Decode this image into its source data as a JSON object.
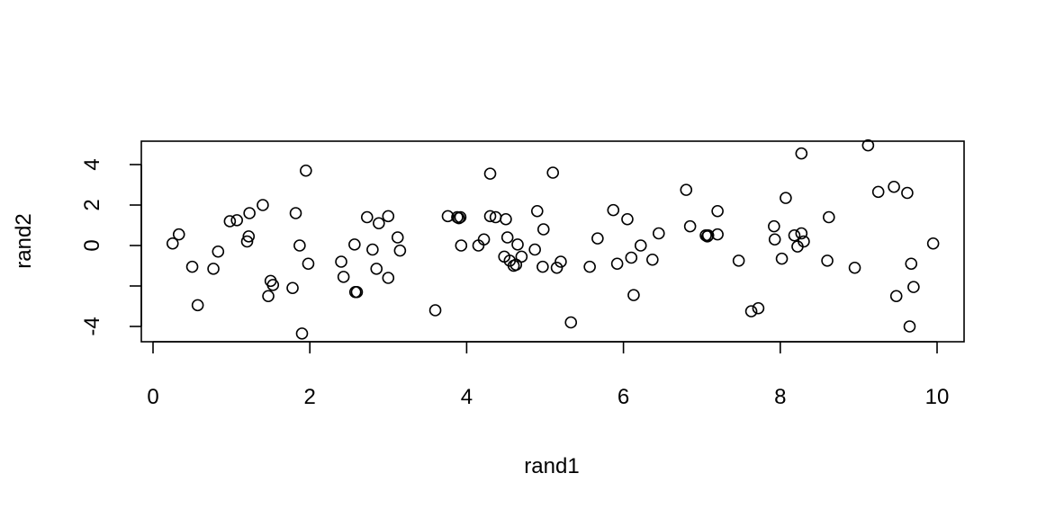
{
  "chart_data": {
    "type": "scatter",
    "title": "",
    "xlabel": "rand1",
    "ylabel": "rand2",
    "xlim": [
      0,
      10
    ],
    "ylim": [
      -4.6,
      5.2
    ],
    "x_ticks": [
      0,
      2,
      4,
      6,
      8,
      10
    ],
    "y_ticks": [
      -4,
      -2,
      0,
      2,
      4
    ],
    "x_tick_labels": [
      "0",
      "2",
      "4",
      "6",
      "8",
      "10"
    ],
    "y_tick_labels": [
      "-4",
      "",
      "0",
      "2",
      "4"
    ],
    "grid": false,
    "marker": "open-circle",
    "points": [
      [
        0.25,
        0.1
      ],
      [
        0.33,
        0.55
      ],
      [
        0.5,
        -1.05
      ],
      [
        0.57,
        -2.95
      ],
      [
        0.77,
        -1.15
      ],
      [
        0.83,
        -0.3
      ],
      [
        0.98,
        1.2
      ],
      [
        1.07,
        1.25
      ],
      [
        1.2,
        0.2
      ],
      [
        1.22,
        0.45
      ],
      [
        1.23,
        1.6
      ],
      [
        1.4,
        2.0
      ],
      [
        1.47,
        -2.5
      ],
      [
        1.5,
        -1.75
      ],
      [
        1.53,
        -1.95
      ],
      [
        1.78,
        -2.1
      ],
      [
        1.82,
        1.6
      ],
      [
        1.87,
        0.0
      ],
      [
        1.9,
        -4.35
      ],
      [
        1.95,
        3.7
      ],
      [
        1.98,
        -0.9
      ],
      [
        2.4,
        -0.8
      ],
      [
        2.43,
        -1.55
      ],
      [
        2.57,
        0.05
      ],
      [
        2.58,
        -2.3
      ],
      [
        2.6,
        -2.3
      ],
      [
        2.73,
        1.4
      ],
      [
        2.8,
        -0.2
      ],
      [
        2.85,
        -1.15
      ],
      [
        2.88,
        1.1
      ],
      [
        3.0,
        -1.6
      ],
      [
        3.0,
        1.45
      ],
      [
        3.12,
        0.4
      ],
      [
        3.15,
        -0.25
      ],
      [
        3.6,
        -3.2
      ],
      [
        3.76,
        1.45
      ],
      [
        3.88,
        1.4
      ],
      [
        3.9,
        1.35
      ],
      [
        3.92,
        1.4
      ],
      [
        3.93,
        0.0
      ],
      [
        4.15,
        0.0
      ],
      [
        4.22,
        0.3
      ],
      [
        4.3,
        3.55
      ],
      [
        4.3,
        1.45
      ],
      [
        4.37,
        1.4
      ],
      [
        4.48,
        -0.55
      ],
      [
        4.5,
        1.3
      ],
      [
        4.52,
        0.4
      ],
      [
        4.55,
        -0.75
      ],
      [
        4.6,
        -1.0
      ],
      [
        4.63,
        -0.95
      ],
      [
        4.65,
        0.05
      ],
      [
        4.7,
        -0.55
      ],
      [
        4.87,
        -0.2
      ],
      [
        4.9,
        1.7
      ],
      [
        4.97,
        -1.05
      ],
      [
        4.98,
        0.8
      ],
      [
        5.1,
        3.6
      ],
      [
        5.15,
        -1.1
      ],
      [
        5.2,
        -0.8
      ],
      [
        5.33,
        -3.8
      ],
      [
        5.57,
        -1.05
      ],
      [
        5.67,
        0.35
      ],
      [
        5.87,
        1.75
      ],
      [
        5.92,
        -0.9
      ],
      [
        6.05,
        1.3
      ],
      [
        6.1,
        -0.6
      ],
      [
        6.13,
        -2.45
      ],
      [
        6.22,
        0.0
      ],
      [
        6.37,
        -0.7
      ],
      [
        6.45,
        0.6
      ],
      [
        6.8,
        2.75
      ],
      [
        6.85,
        0.95
      ],
      [
        7.05,
        0.5
      ],
      [
        7.07,
        0.45
      ],
      [
        7.08,
        0.5
      ],
      [
        7.2,
        0.55
      ],
      [
        7.2,
        1.7
      ],
      [
        7.47,
        -0.75
      ],
      [
        7.63,
        -3.25
      ],
      [
        7.72,
        -3.1
      ],
      [
        7.92,
        0.95
      ],
      [
        7.93,
        0.3
      ],
      [
        8.02,
        -0.65
      ],
      [
        8.07,
        2.35
      ],
      [
        8.18,
        0.5
      ],
      [
        8.22,
        -0.05
      ],
      [
        8.27,
        0.6
      ],
      [
        8.27,
        4.55
      ],
      [
        8.3,
        0.2
      ],
      [
        8.6,
        -0.75
      ],
      [
        8.62,
        1.4
      ],
      [
        8.95,
        -1.1
      ],
      [
        9.12,
        4.95
      ],
      [
        9.25,
        2.65
      ],
      [
        9.45,
        2.9
      ],
      [
        9.48,
        -2.5
      ],
      [
        9.62,
        2.6
      ],
      [
        9.65,
        -4.0
      ],
      [
        9.67,
        -0.9
      ],
      [
        9.7,
        -2.05
      ],
      [
        9.95,
        0.1
      ]
    ]
  }
}
